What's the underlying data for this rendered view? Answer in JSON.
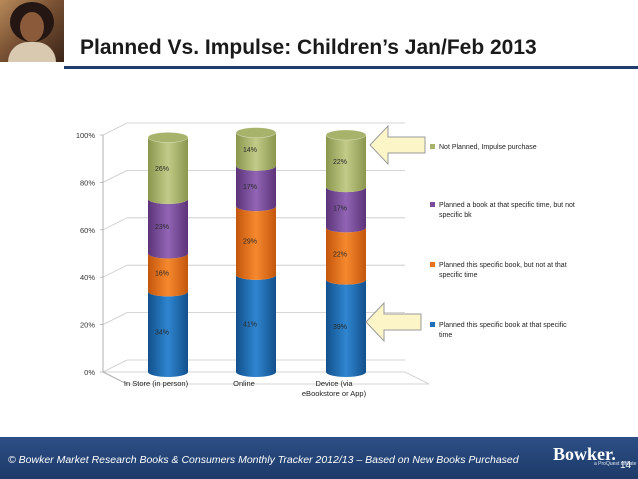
{
  "slide": {
    "title": "Planned Vs. Impulse: Children’s Jan/Feb 2013",
    "footer": "© Bowker Market Research Books & Consumers Monthly Tracker 2012/13 – Based on New Books Purchased",
    "logo": "Bowker.",
    "logo_sub": "a ProQuest affiliate",
    "page_number": "14"
  },
  "colors": {
    "planned_specific_book": "#1f6fb8",
    "planned_specific_book_not_time": "#e8731c",
    "planned_time_not_book": "#7a4b9c",
    "not_planned": "#a7b36a",
    "arrow_fill": "#fbf5c8",
    "arrow_stroke": "#9a9a9a"
  },
  "chart_data": {
    "type": "bar",
    "stacked": true,
    "categories": [
      "In Store (in person)",
      "Online",
      "Device (via eBookstore or App)"
    ],
    "category_lines": [
      [
        "In Store (in person)"
      ],
      [
        "Online"
      ],
      [
        "Device (via",
        "eBookstore or App)"
      ]
    ],
    "series": [
      {
        "name": "Planned this specific book at that specific time",
        "legend_lines": [
          "Planned this specific book at that specific",
          "time"
        ],
        "color_key": "planned_specific_book",
        "values": [
          34,
          41,
          39
        ]
      },
      {
        "name": "Planned this specific book, but not at that specific time",
        "legend_lines": [
          "Planned this specific book, but not at that",
          "specific time"
        ],
        "color_key": "planned_specific_book_not_time",
        "values": [
          16,
          29,
          22
        ]
      },
      {
        "name": "Planned a book at that specific time, but not specific bk",
        "legend_lines": [
          "Planned a book at that specific time, but not",
          "specific bk"
        ],
        "color_key": "planned_time_not_book",
        "values": [
          23,
          17,
          17
        ]
      },
      {
        "name": "Not Planned, Impulse purchase",
        "legend_lines": [
          "Not Planned, Impulse purchase"
        ],
        "color_key": "not_planned",
        "values": [
          26,
          14,
          22
        ]
      }
    ],
    "data_labels": [
      [
        "34%",
        "16%",
        "23%",
        "26%"
      ],
      [
        "41%",
        "29%",
        "17%",
        "14%"
      ],
      [
        "39%",
        "22%",
        "17%",
        "22%"
      ]
    ],
    "yticks": [
      0,
      20,
      40,
      60,
      80,
      100
    ],
    "ytick_labels": [
      "0%",
      "20%",
      "40%",
      "60%",
      "80%",
      "100%"
    ],
    "ylim": [
      0,
      100
    ],
    "legend_position": "right",
    "annotations": [
      "arrow pointing to Not Planned, Impulse purchase",
      "arrow pointing to Planned this specific book at that specific time"
    ]
  }
}
